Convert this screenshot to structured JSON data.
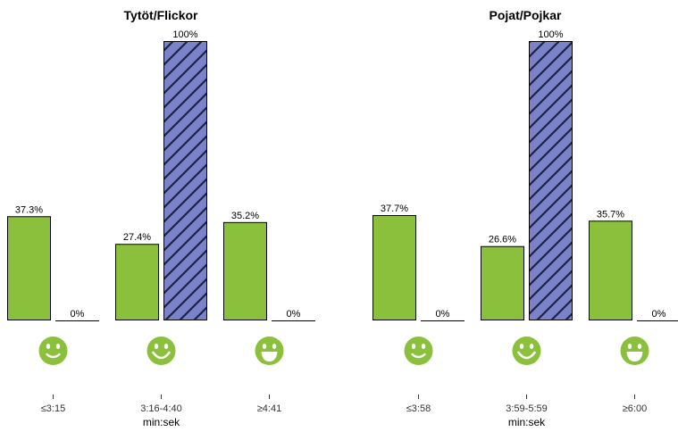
{
  "colors": {
    "green": "#8bc03d",
    "hatch_fill": "#7a82cc",
    "hatch_stroke": "#1f2340",
    "text": "#000000"
  },
  "chart_data": [
    {
      "type": "bar",
      "title": "Tytöt/Flickor",
      "xlabel": "min:sek",
      "categories": [
        "≤3:15",
        "3:16-4:40",
        "≥4:41"
      ],
      "ylim": [
        0,
        100
      ],
      "series": [
        {
          "style": "green",
          "values": [
            37.3,
            27.4,
            35.2
          ],
          "labels": [
            "37.3%",
            "27.4%",
            "35.2%"
          ]
        },
        {
          "style": "hatched",
          "values": [
            0,
            100,
            0
          ],
          "labels": [
            "0%",
            "100%",
            "0%"
          ]
        }
      ],
      "icons": [
        "smiley-face-icon",
        "smiley-grin-icon",
        "smiley-laugh-icon"
      ]
    },
    {
      "type": "bar",
      "title": "Pojat/Pojkar",
      "xlabel": "min:sek",
      "categories": [
        "≤3:58",
        "3:59-5:59",
        "≥6:00"
      ],
      "ylim": [
        0,
        100
      ],
      "series": [
        {
          "style": "green",
          "values": [
            37.7,
            26.6,
            35.7
          ],
          "labels": [
            "37.7%",
            "26.6%",
            "35.7%"
          ]
        },
        {
          "style": "hatched",
          "values": [
            0,
            100,
            0
          ],
          "labels": [
            "0%",
            "100%",
            "0%"
          ]
        }
      ],
      "icons": [
        "smiley-face-icon",
        "smiley-grin-icon",
        "smiley-laugh-icon"
      ]
    }
  ]
}
